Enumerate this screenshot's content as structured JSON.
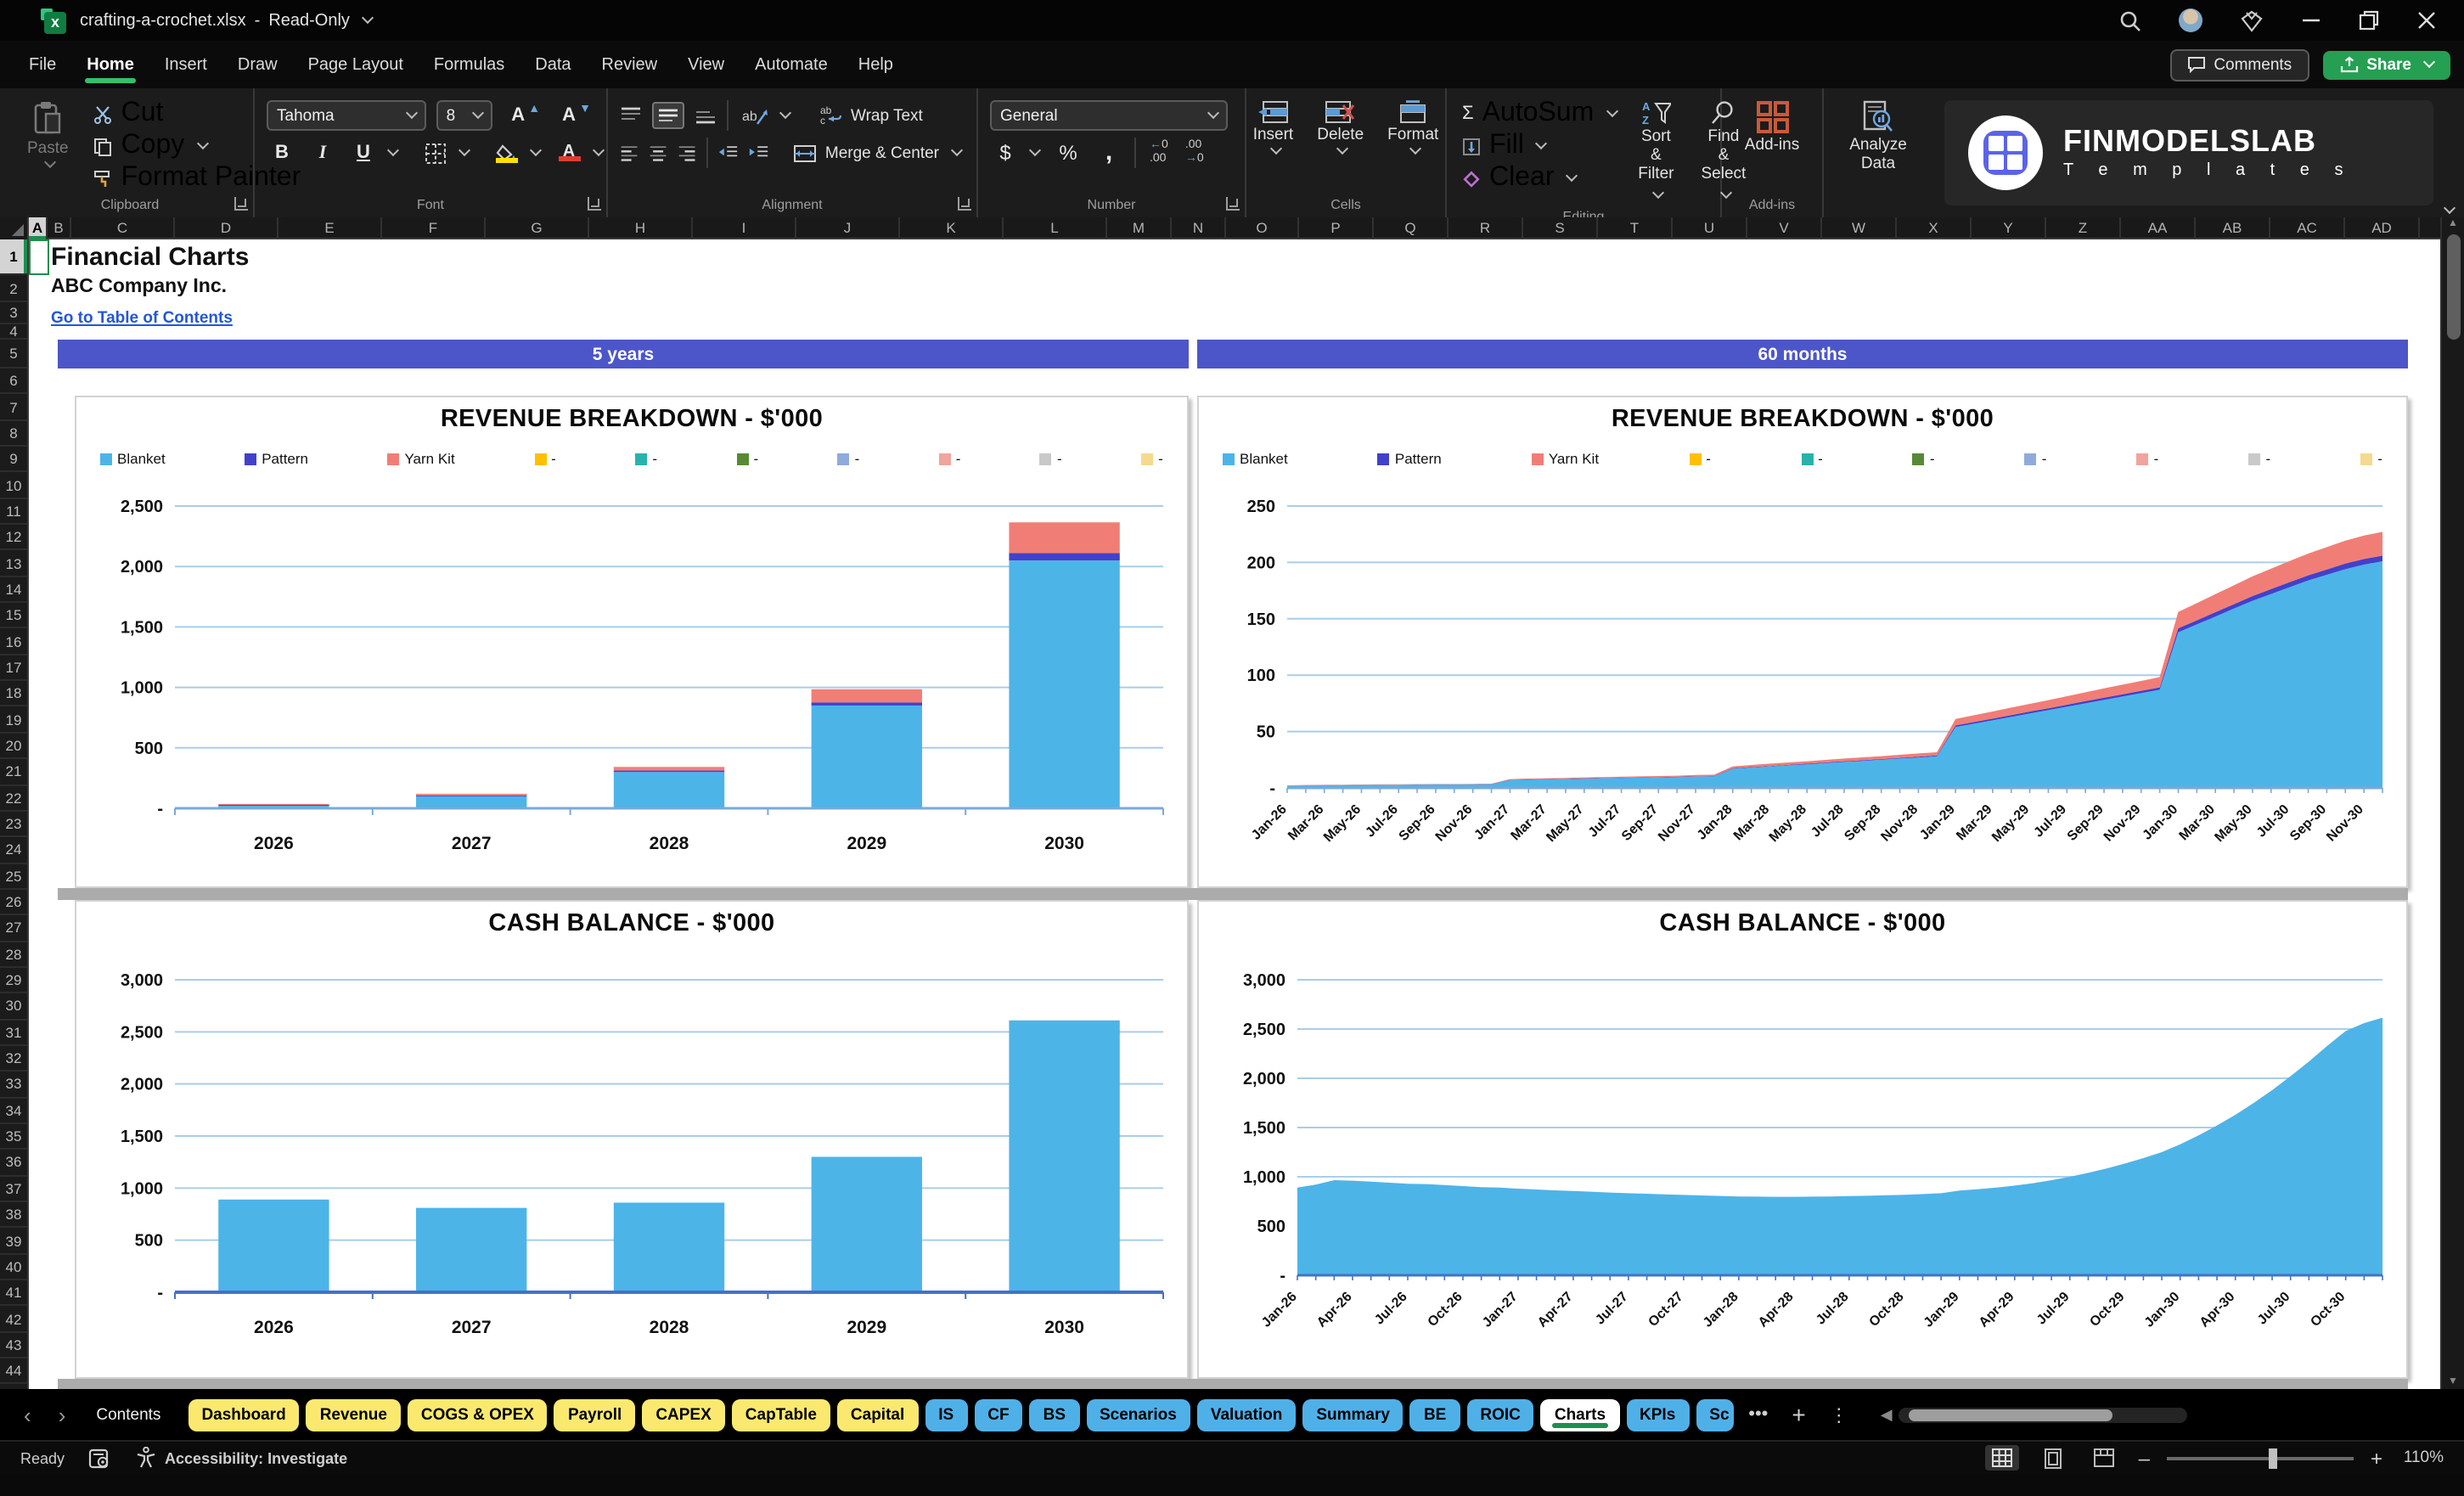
{
  "window": {
    "filename": "crafting-a-crochet.xlsx",
    "separator": "-",
    "mode": "Read-Only"
  },
  "ribbon": {
    "tabs": [
      "File",
      "Home",
      "Insert",
      "Draw",
      "Page Layout",
      "Formulas",
      "Data",
      "Review",
      "View",
      "Automate",
      "Help"
    ],
    "active_tab": "Home",
    "comments_label": "Comments",
    "share_label": "Share",
    "clipboard": {
      "label": "Clipboard",
      "paste": "Paste",
      "cut": "Cut",
      "copy": "Copy",
      "format_painter": "Format Painter"
    },
    "font": {
      "label": "Font",
      "font_name": "Tahoma",
      "font_size": "8",
      "bold": "B",
      "italic": "I",
      "underline": "U",
      "grow": "A",
      "shrink": "A",
      "color_glyph": "A"
    },
    "alignment": {
      "label": "Alignment",
      "wrap_text": "Wrap Text",
      "merge_center": "Merge & Center",
      "orient": "ab"
    },
    "number": {
      "label": "Number",
      "format": "General",
      "currency": "$",
      "percent": "%",
      "comma": ",",
      "inc_dec": "←0\n.00",
      "dec_dec": ".00\n→0"
    },
    "cells": {
      "label": "Cells",
      "insert": "Insert",
      "delete": "Delete",
      "format": "Format"
    },
    "editing": {
      "label": "Editing",
      "autosum_icon": "Σ",
      "autosum": "AutoSum",
      "fill": "Fill",
      "clear": "Clear",
      "sort1": "Sort &",
      "sort2": "Filter",
      "find1": "Find &",
      "find2": "Select"
    },
    "addins": {
      "label": "Add-ins",
      "addins": "Add-ins",
      "analyze1": "Analyze",
      "analyze2": "Data"
    },
    "logo": {
      "line1": "FINMODELSLAB",
      "line2": "T e m p l a t e s"
    }
  },
  "sheet": {
    "columns": [
      "A",
      "B",
      "C",
      "D",
      "E",
      "F",
      "G",
      "H",
      "I",
      "J",
      "K",
      "L",
      "M",
      "N",
      "O",
      "P",
      "Q",
      "R",
      "S",
      "T",
      "U",
      "V",
      "W",
      "X",
      "Y",
      "Z",
      "AA",
      "AB",
      "AC",
      "AD"
    ],
    "rows_visible": 45,
    "selected_cell": "A1",
    "title": "Financial Charts",
    "company": "ABC Company Inc.",
    "link": "Go to Table of Contents",
    "banners": [
      "5 years",
      "60 months"
    ]
  },
  "colors": {
    "banner": "#4C56C9",
    "series_blanket": "#4DB4E8",
    "series_pattern": "#4141CB",
    "series_yarn": "#F17E76",
    "gridline": "#A9CEE8",
    "tab_yellow": "#FAE96E",
    "tab_blue": "#4FB0E8",
    "active_underline": "#1e8e4e",
    "share_green": "#259f52"
  },
  "chart_data": [
    {
      "name": "revenue-breakdown-5-years",
      "type": "bar-stacked",
      "title": "REVENUE BREAKDOWN - $'000",
      "categories": [
        "2026",
        "2027",
        "2028",
        "2029",
        "2030"
      ],
      "series": [
        {
          "name": "Blanket",
          "color": "#4DB4E8",
          "values": [
            25,
            100,
            300,
            850,
            2050
          ]
        },
        {
          "name": "Pattern",
          "color": "#4141CB",
          "values": [
            3,
            6,
            12,
            25,
            60
          ]
        },
        {
          "name": "Yarn Kit",
          "color": "#F17E76",
          "values": [
            8,
            14,
            30,
            110,
            255
          ]
        }
      ],
      "legend": [
        {
          "label": "Blanket",
          "color": "#4DB4E8"
        },
        {
          "label": "Pattern",
          "color": "#4141CB"
        },
        {
          "label": "Yarn Kit",
          "color": "#F17E76"
        },
        {
          "label": "-",
          "color": "#FFC000"
        },
        {
          "label": "-",
          "color": "#27B3AC"
        },
        {
          "label": "-",
          "color": "#568A35"
        },
        {
          "label": "-",
          "color": "#8FAADC"
        },
        {
          "label": "-",
          "color": "#F0A49B"
        },
        {
          "label": "-",
          "color": "#C9C9C9"
        },
        {
          "label": "-",
          "color": "#F6D98E"
        }
      ],
      "yticks": [
        0,
        500,
        1000,
        1500,
        2000,
        2500
      ],
      "ytick_labels": [
        "-",
        "500",
        "1,000",
        "1,500",
        "2,000",
        "2,500"
      ],
      "ymax": 2500,
      "axis_color": "#7aa9d8",
      "ml": 58,
      "mt": 64,
      "mb": 46
    },
    {
      "name": "revenue-breakdown-60-months",
      "type": "area-stacked",
      "title": "REVENUE BREAKDOWN - $'000",
      "x": [
        "Jan-26",
        "Feb-26",
        "Mar-26",
        "Apr-26",
        "May-26",
        "Jun-26",
        "Jul-26",
        "Aug-26",
        "Sep-26",
        "Oct-26",
        "Nov-26",
        "Dec-26",
        "Jan-27",
        "Feb-27",
        "Mar-27",
        "Apr-27",
        "May-27",
        "Jun-27",
        "Jul-27",
        "Aug-27",
        "Sep-27",
        "Oct-27",
        "Nov-27",
        "Dec-27",
        "Jan-28",
        "Feb-28",
        "Mar-28",
        "Apr-28",
        "May-28",
        "Jun-28",
        "Jul-28",
        "Aug-28",
        "Sep-28",
        "Oct-28",
        "Nov-28",
        "Dec-28",
        "Jan-29",
        "Feb-29",
        "Mar-29",
        "Apr-29",
        "May-29",
        "Jun-29",
        "Jul-29",
        "Aug-29",
        "Sep-29",
        "Oct-29",
        "Nov-29",
        "Dec-29",
        "Jan-30",
        "Feb-30",
        "Mar-30",
        "Apr-30",
        "May-30",
        "Jun-30",
        "Jul-30",
        "Aug-30",
        "Sep-30",
        "Oct-30",
        "Nov-30",
        "Dec-30"
      ],
      "xtick_step": 2,
      "series": [
        {
          "name": "Blanket",
          "color": "#4DB4E8",
          "values": [
            2,
            2.2,
            2.4,
            2.5,
            2.6,
            2.7,
            2.8,
            2.9,
            3,
            3.1,
            3.2,
            3.3,
            7,
            7.3,
            7.6,
            7.9,
            8.2,
            8.5,
            8.8,
            9.1,
            9.4,
            9.7,
            10,
            10.3,
            17,
            18,
            19,
            20,
            21,
            22,
            23,
            24,
            25,
            26,
            27,
            28,
            54,
            57,
            60,
            63,
            66,
            69,
            72,
            75,
            78,
            81,
            84,
            87,
            138,
            145,
            152,
            159,
            166,
            172,
            178,
            184,
            189,
            194,
            198,
            201
          ]
        },
        {
          "name": "Pattern",
          "color": "#4141CB",
          "values": [
            0.1,
            0.1,
            0.1,
            0.1,
            0.1,
            0.1,
            0.1,
            0.1,
            0.1,
            0.1,
            0.1,
            0.1,
            0.2,
            0.2,
            0.2,
            0.2,
            0.2,
            0.2,
            0.2,
            0.2,
            0.2,
            0.2,
            0.3,
            0.3,
            0.4,
            0.5,
            0.5,
            0.5,
            0.5,
            0.6,
            0.6,
            0.6,
            0.6,
            0.7,
            0.7,
            0.7,
            1.4,
            1.4,
            1.5,
            1.6,
            1.7,
            1.7,
            1.8,
            1.9,
            2,
            2,
            2.1,
            2.2,
            3.5,
            3.6,
            3.8,
            4,
            4.2,
            4.3,
            4.5,
            4.6,
            4.7,
            4.9,
            5,
            5
          ]
        },
        {
          "name": "Yarn Kit",
          "color": "#F17E76",
          "values": [
            0.2,
            0.2,
            0.3,
            0.3,
            0.3,
            0.3,
            0.3,
            0.3,
            0.3,
            0.3,
            0.3,
            0.3,
            0.7,
            0.8,
            0.8,
            0.8,
            0.9,
            0.9,
            0.9,
            1,
            1,
            1,
            1.1,
            1.1,
            1.8,
            1.9,
            2,
            2.1,
            2.2,
            2.3,
            2.4,
            2.5,
            2.6,
            2.7,
            2.8,
            2.9,
            5.7,
            6,
            6.3,
            6.6,
            6.9,
            7.2,
            7.6,
            7.9,
            8.2,
            8.5,
            8.8,
            9.1,
            14.5,
            15.2,
            16,
            16.7,
            17.4,
            18.1,
            18.7,
            19.3,
            19.8,
            20.4,
            20.8,
            21.1
          ]
        }
      ],
      "legend": [
        {
          "label": "Blanket",
          "color": "#4DB4E8"
        },
        {
          "label": "Pattern",
          "color": "#4141CB"
        },
        {
          "label": "Yarn Kit",
          "color": "#F17E76"
        },
        {
          "label": "-",
          "color": "#FFC000"
        },
        {
          "label": "-",
          "color": "#27B3AC"
        },
        {
          "label": "-",
          "color": "#568A35"
        },
        {
          "label": "-",
          "color": "#8FAADC"
        },
        {
          "label": "-",
          "color": "#F0A49B"
        },
        {
          "label": "-",
          "color": "#C9C9C9"
        },
        {
          "label": "-",
          "color": "#F6D98E"
        }
      ],
      "yticks": [
        0,
        50,
        100,
        150,
        200,
        250
      ],
      "ytick_labels": [
        "-",
        "50",
        "100",
        "150",
        "200",
        "250"
      ],
      "ymax": 250,
      "axis_color": "#7aa9d8",
      "ml": 52,
      "mt": 64,
      "mb": 58
    },
    {
      "name": "cash-balance-5-years",
      "type": "bar",
      "title": "CASH BALANCE - $'000",
      "categories": [
        "2026",
        "2027",
        "2028",
        "2029",
        "2030"
      ],
      "series": [
        {
          "name": "Cash balance",
          "color": "#4DB4E8",
          "values": [
            890,
            810,
            860,
            1300,
            2610
          ]
        }
      ],
      "legend": [],
      "yticks": [
        0,
        500,
        1000,
        1500,
        2000,
        2500,
        3000
      ],
      "ytick_labels": [
        "-",
        "500",
        "1,000",
        "1,500",
        "2,000",
        "2,500",
        "3,000"
      ],
      "ymax": 3000,
      "axis_color": "#4472C4",
      "ml": 58,
      "mt": 46,
      "mb": 50
    },
    {
      "name": "cash-balance-60-months",
      "type": "area",
      "title": "CASH BALANCE - $'000",
      "x": [
        "Jan-26",
        "Feb-26",
        "Mar-26",
        "Apr-26",
        "May-26",
        "Jun-26",
        "Jul-26",
        "Aug-26",
        "Sep-26",
        "Oct-26",
        "Nov-26",
        "Dec-26",
        "Jan-27",
        "Feb-27",
        "Mar-27",
        "Apr-27",
        "May-27",
        "Jun-27",
        "Jul-27",
        "Aug-27",
        "Sep-27",
        "Oct-27",
        "Nov-27",
        "Dec-27",
        "Jan-28",
        "Feb-28",
        "Mar-28",
        "Apr-28",
        "May-28",
        "Jun-28",
        "Jul-28",
        "Aug-28",
        "Sep-28",
        "Oct-28",
        "Nov-28",
        "Dec-28",
        "Jan-29",
        "Feb-29",
        "Mar-29",
        "Apr-29",
        "May-29",
        "Jun-29",
        "Jul-29",
        "Aug-29",
        "Sep-29",
        "Oct-29",
        "Nov-29",
        "Dec-29",
        "Jan-30",
        "Feb-30",
        "Mar-30",
        "Apr-30",
        "May-30",
        "Jun-30",
        "Jul-30",
        "Aug-30",
        "Sep-30",
        "Oct-30",
        "Nov-30",
        "Dec-30"
      ],
      "xtick_step": 3,
      "series": [
        {
          "name": "Cash balance",
          "color": "#4DB4E8",
          "values": [
            890,
            920,
            965,
            960,
            950,
            940,
            930,
            925,
            915,
            905,
            895,
            890,
            880,
            870,
            862,
            855,
            848,
            840,
            833,
            827,
            820,
            815,
            810,
            806,
            800,
            798,
            797,
            797,
            798,
            800,
            803,
            807,
            812,
            818,
            825,
            833,
            860,
            875,
            890,
            910,
            935,
            965,
            1000,
            1040,
            1085,
            1135,
            1190,
            1250,
            1330,
            1420,
            1520,
            1630,
            1750,
            1880,
            2020,
            2170,
            2330,
            2480,
            2560,
            2615
          ]
        }
      ],
      "legend": [],
      "yticks": [
        0,
        500,
        1000,
        1500,
        2000,
        2500,
        3000
      ],
      "ytick_labels": [
        "-",
        "500",
        "1,000",
        "1,500",
        "2,000",
        "2,500",
        "3,000"
      ],
      "ymax": 3000,
      "axis_color": "#4472C4",
      "ml": 58,
      "mt": 46,
      "mb": 60
    }
  ],
  "tabs": {
    "sheets": [
      {
        "label": "Contents",
        "type": "plain"
      },
      {
        "label": "Dashboard",
        "type": "yellow"
      },
      {
        "label": "Revenue",
        "type": "yellow"
      },
      {
        "label": "COGS & OPEX",
        "type": "yellow"
      },
      {
        "label": "Payroll",
        "type": "yellow"
      },
      {
        "label": "CAPEX",
        "type": "yellow"
      },
      {
        "label": "CapTable",
        "type": "yellow"
      },
      {
        "label": "Capital",
        "type": "yellow"
      },
      {
        "label": "IS",
        "type": "blue"
      },
      {
        "label": "CF",
        "type": "blue"
      },
      {
        "label": "BS",
        "type": "blue"
      },
      {
        "label": "Scenarios",
        "type": "blue"
      },
      {
        "label": "Valuation",
        "type": "blue"
      },
      {
        "label": "Summary",
        "type": "blue"
      },
      {
        "label": "BE",
        "type": "blue"
      },
      {
        "label": "ROIC",
        "type": "blue"
      },
      {
        "label": "Charts",
        "type": "active"
      },
      {
        "label": "KPIs",
        "type": "blue"
      },
      {
        "label": "Sc",
        "type": "blue clip"
      }
    ],
    "more": "•••",
    "add": "+",
    "menu": "⋮"
  },
  "statusbar": {
    "ready": "Ready",
    "accessibility": "Accessibility: Investigate",
    "zoom": "110%"
  }
}
